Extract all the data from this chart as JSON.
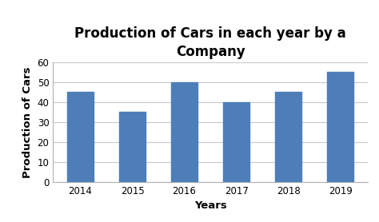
{
  "title": "Production of Cars in each year by a\nCompany",
  "xlabel": "Years",
  "ylabel": "Production of Cars",
  "categories": [
    "2014",
    "2015",
    "2016",
    "2017",
    "2018",
    "2019"
  ],
  "values": [
    45,
    35,
    50,
    40,
    45,
    55
  ],
  "bar_color": "#4d7eb8",
  "background_color": "#ffffff",
  "ylim": [
    0,
    60
  ],
  "yticks": [
    0,
    10,
    20,
    30,
    40,
    50,
    60
  ],
  "title_fontsize": 12,
  "axis_label_fontsize": 9.5,
  "tick_fontsize": 8.5,
  "bar_width": 0.5,
  "grid_color": "#c8c8c8",
  "grid_linewidth": 0.8
}
